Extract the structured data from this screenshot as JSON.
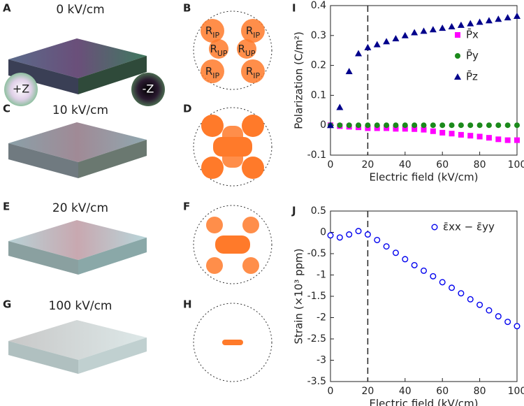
{
  "panels": {
    "labels": [
      "A",
      "B",
      "C",
      "D",
      "E",
      "F",
      "G",
      "H",
      "I",
      "J"
    ],
    "fields": [
      "0 kV/cm",
      "10 kV/cm",
      "20 kV/cm",
      "100 kV/cm"
    ],
    "color_wheels": [
      "+Z",
      "-Z"
    ],
    "r_ip": [
      "R",
      "IP"
    ],
    "r_up": [
      "R",
      "UP"
    ]
  },
  "chart_data": [
    {
      "type": "scatter",
      "xlabel": "Electric field (kV/cm)",
      "ylabel": "Polarization (C/m²)",
      "xlim": [
        0,
        100
      ],
      "ylim": [
        -0.1,
        0.4
      ],
      "xticks": [
        0,
        20,
        40,
        60,
        80,
        100
      ],
      "yticks": [
        -0.1,
        0,
        0.1,
        0.2,
        0.3,
        0.4
      ],
      "vline": 20,
      "legend": "right",
      "x": [
        0,
        5,
        10,
        15,
        20,
        25,
        30,
        35,
        40,
        45,
        50,
        55,
        60,
        65,
        70,
        75,
        80,
        85,
        90,
        95,
        100
      ],
      "series": [
        {
          "name": "P̄x",
          "color": "#ff00ff",
          "marker": "square",
          "filled": true,
          "values": [
            0,
            -0.003,
            -0.005,
            -0.007,
            -0.01,
            -0.01,
            -0.01,
            -0.012,
            -0.012,
            -0.013,
            -0.015,
            -0.02,
            -0.025,
            -0.028,
            -0.032,
            -0.035,
            -0.038,
            -0.042,
            -0.047,
            -0.05,
            -0.05
          ]
        },
        {
          "name": "P̄y",
          "color": "#1b8a1b",
          "marker": "circle",
          "filled": true,
          "values": [
            0,
            0,
            0,
            0,
            0,
            0,
            0,
            0,
            0,
            0,
            0,
            0,
            0,
            0,
            0,
            0,
            0,
            0,
            0,
            0,
            0
          ]
        },
        {
          "name": "P̄z",
          "color": "#00008b",
          "marker": "triangle",
          "filled": true,
          "values": [
            0,
            0.06,
            0.18,
            0.24,
            0.26,
            0.27,
            0.28,
            0.29,
            0.3,
            0.31,
            0.315,
            0.32,
            0.325,
            0.33,
            0.335,
            0.34,
            0.345,
            0.35,
            0.355,
            0.36,
            0.365
          ]
        }
      ]
    },
    {
      "type": "scatter",
      "xlabel": "Electric field (kV/cm)",
      "ylabel": "Strain (×10³ ppm)",
      "xlim": [
        0,
        100
      ],
      "ylim": [
        -3.5,
        0.5
      ],
      "xticks": [
        0,
        20,
        40,
        60,
        80,
        100
      ],
      "yticks": [
        0.5,
        0,
        -0.5,
        -1,
        -1.5,
        -2,
        -2.5,
        -3,
        -3.5
      ],
      "vline": 20,
      "legend": "upper right",
      "x": [
        0,
        5,
        10,
        15,
        20,
        25,
        30,
        35,
        40,
        45,
        50,
        55,
        60,
        65,
        70,
        75,
        80,
        85,
        90,
        95,
        100
      ],
      "series": [
        {
          "name": "ε̄xx − ε̄yy",
          "color": "#0000ee",
          "marker": "circle",
          "filled": false,
          "values": [
            -0.07,
            -0.12,
            -0.05,
            0.03,
            -0.05,
            -0.18,
            -0.33,
            -0.48,
            -0.63,
            -0.77,
            -0.9,
            -1.03,
            -1.17,
            -1.3,
            -1.43,
            -1.57,
            -1.7,
            -1.83,
            -1.97,
            -2.1,
            -2.2
          ]
        }
      ]
    }
  ]
}
